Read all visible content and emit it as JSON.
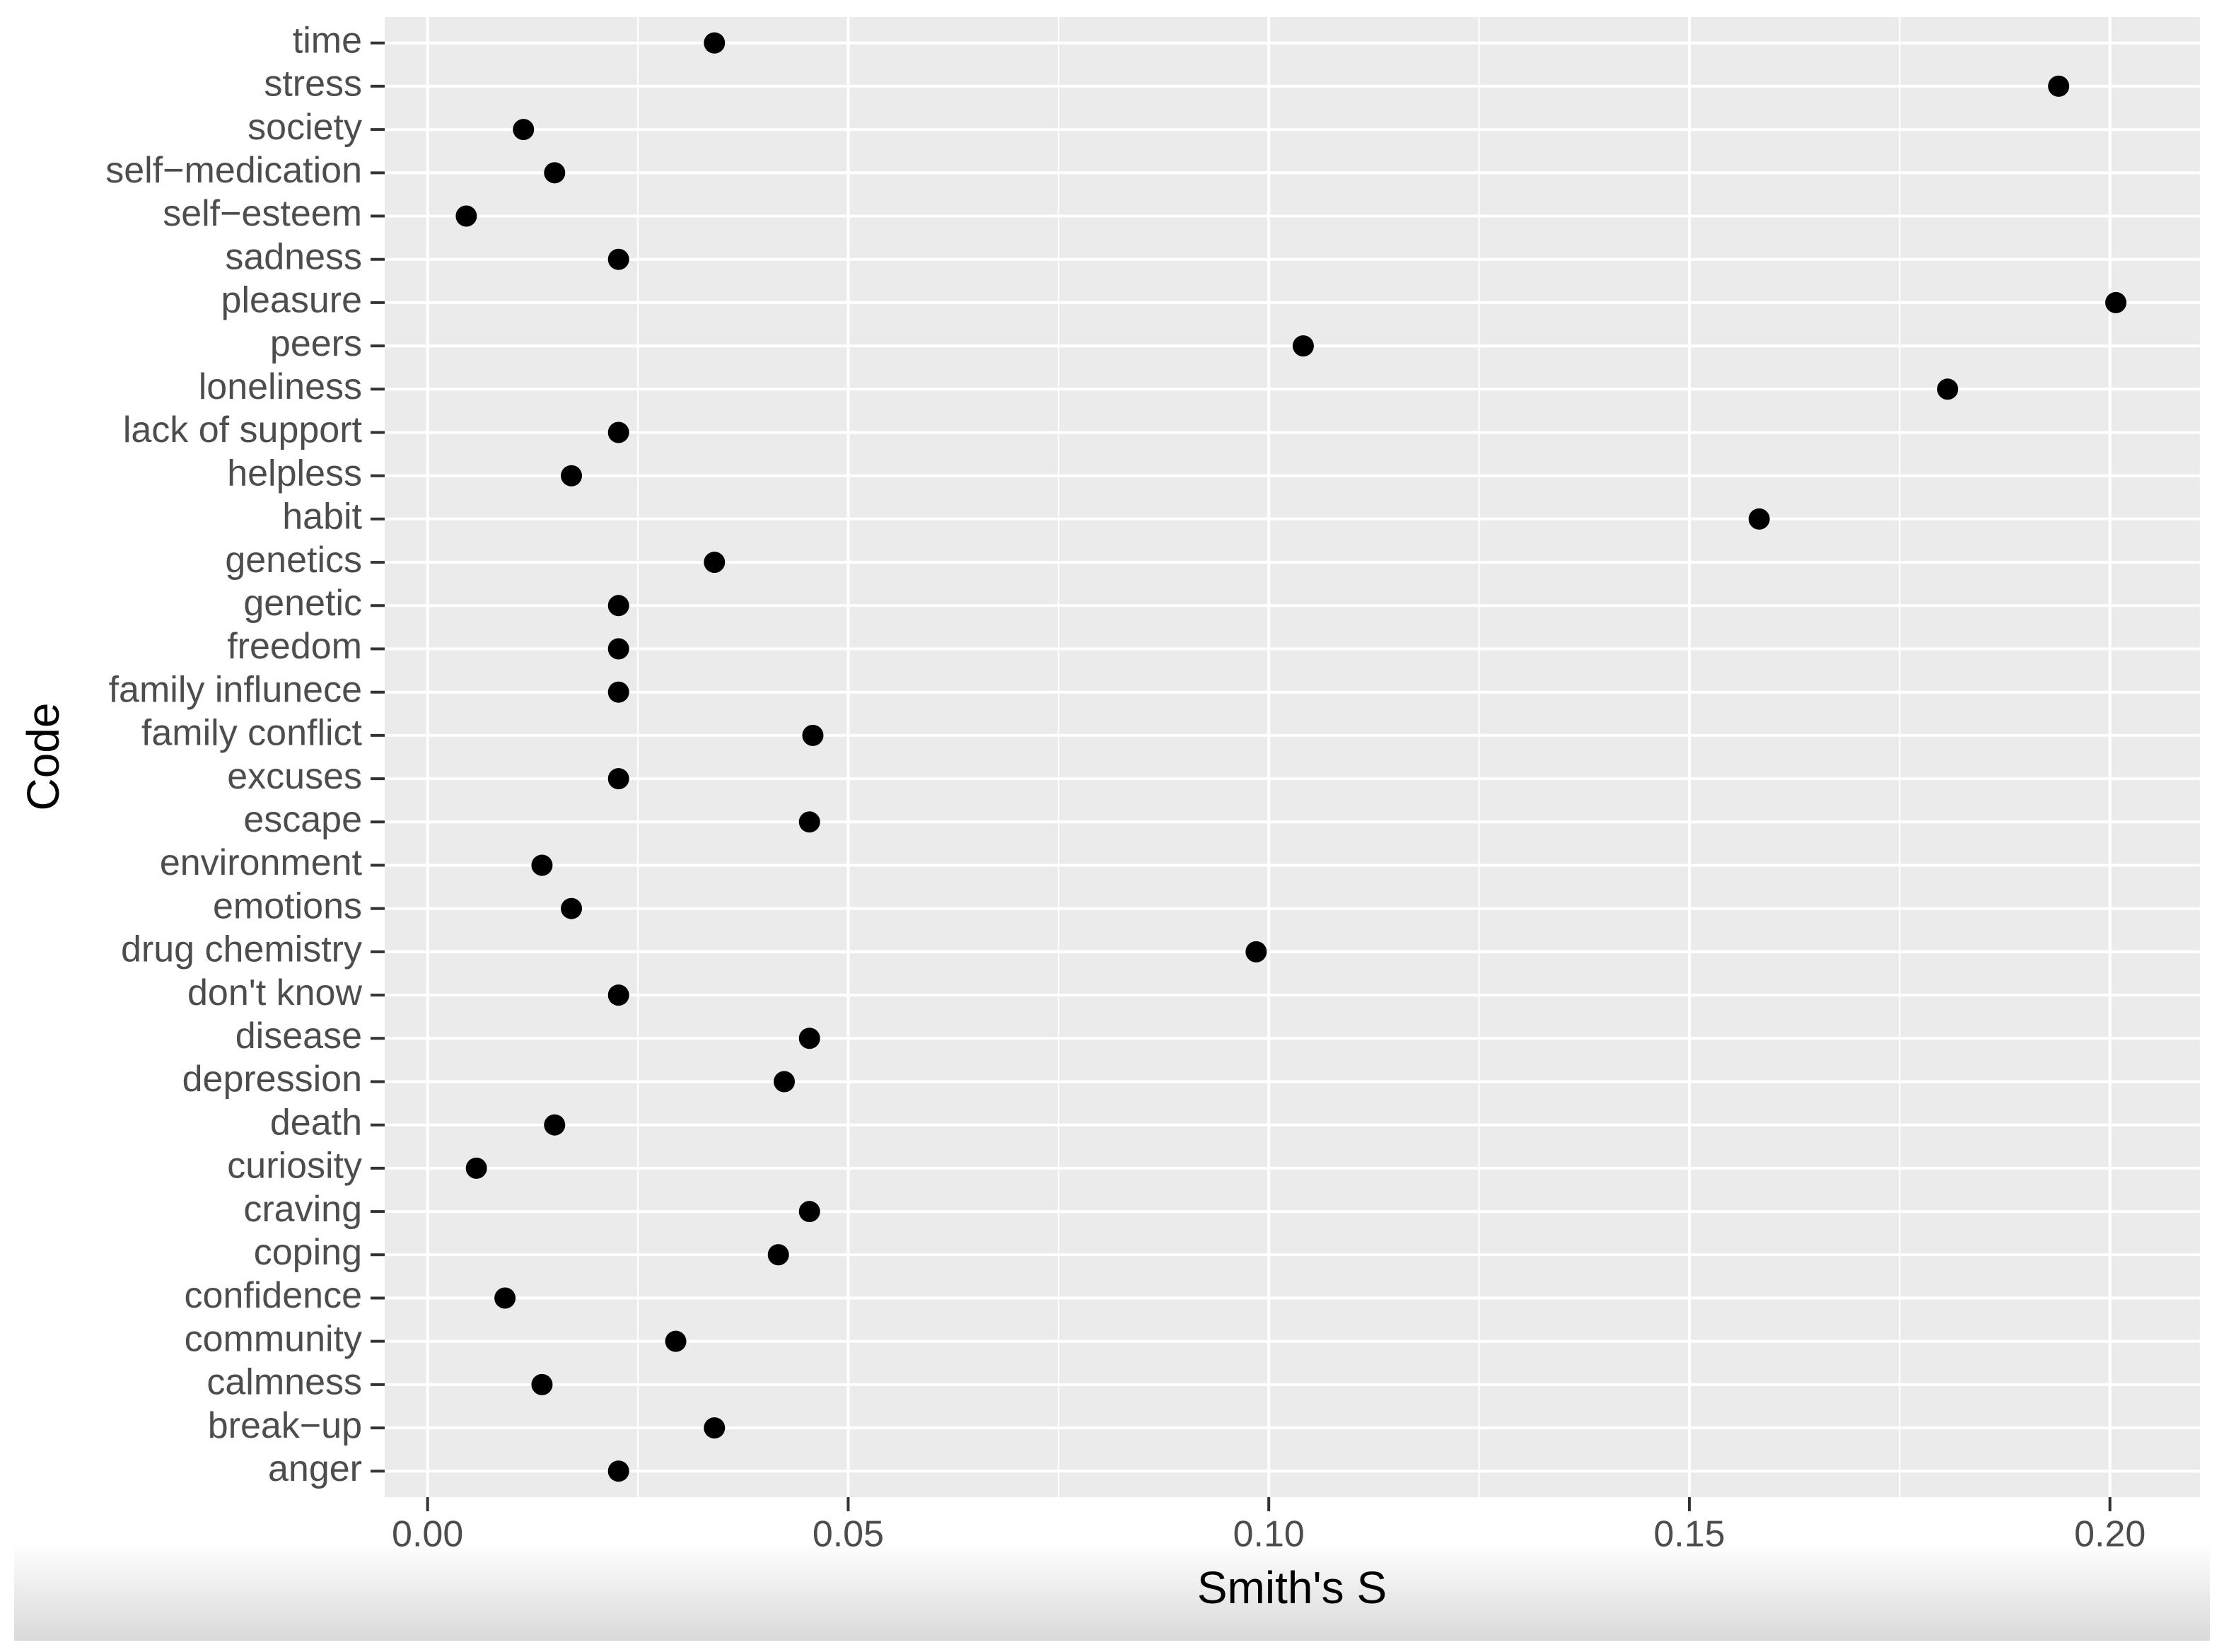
{
  "chart_data": {
    "type": "dot",
    "x_label": "Smith's S",
    "y_label": "Code",
    "categories": [
      "time",
      "stress",
      "society",
      "self−medication",
      "self−esteem",
      "sadness",
      "pleasure",
      "peers",
      "loneliness",
      "lack of support",
      "helpless",
      "habit",
      "genetics",
      "genetic",
      "freedom",
      "family influnece",
      "family conflict",
      "excuses",
      "escape",
      "environment",
      "emotions",
      "drug chemistry",
      "don't know",
      "disease",
      "depression",
      "death",
      "curiosity",
      "craving",
      "coping",
      "confidence",
      "community",
      "calmness",
      "break−up",
      "anger"
    ],
    "values": [
      0.0341,
      0.1939,
      0.0114,
      0.0151,
      0.0046,
      0.0227,
      0.2007,
      0.1041,
      0.1807,
      0.0227,
      0.0171,
      0.1583,
      0.0341,
      0.0227,
      0.0227,
      0.0227,
      0.0458,
      0.0227,
      0.0454,
      0.0136,
      0.0171,
      0.0985,
      0.0227,
      0.0454,
      0.0424,
      0.0151,
      0.0058,
      0.0454,
      0.0417,
      0.0092,
      0.0295,
      0.0136,
      0.0341,
      0.0227
    ],
    "color": "#000000",
    "xlim": [
      -0.0051,
      0.2107
    ],
    "xticks": [
      {
        "value": 0,
        "label": "0.00"
      },
      {
        "value": 0.05,
        "label": "0.05"
      },
      {
        "value": 0.1,
        "label": "0.10"
      },
      {
        "value": 0.15,
        "label": "0.15"
      },
      {
        "value": 0.2,
        "label": "0.20"
      }
    ],
    "grid": true
  }
}
